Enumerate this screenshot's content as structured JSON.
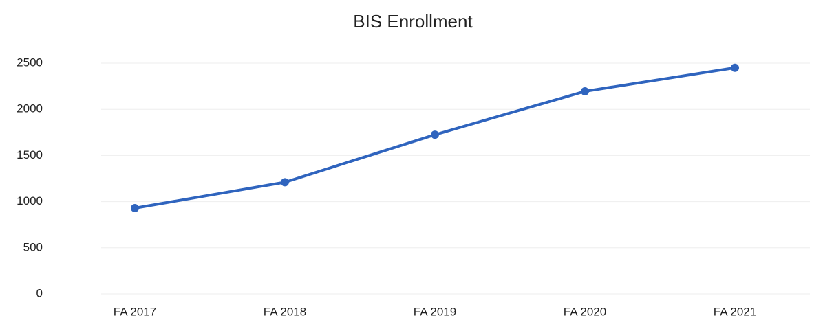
{
  "chart_data": {
    "type": "line",
    "title": "BIS Enrollment",
    "categories": [
      "FA 2017",
      "FA 2018",
      "FA 2019",
      "FA 2020",
      "FA 2021"
    ],
    "series": [
      {
        "name": "BIS Enrollment",
        "color": "#2f64be",
        "values": [
          930,
          1210,
          1725,
          2195,
          2450
        ]
      }
    ],
    "ylim": [
      0,
      2500
    ],
    "yticks": [
      0,
      500,
      1000,
      1500,
      2000,
      2500
    ],
    "grid": true
  }
}
